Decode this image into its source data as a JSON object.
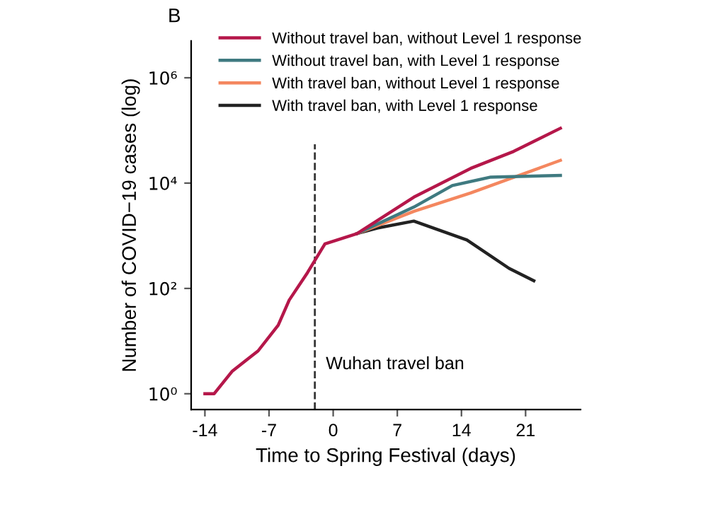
{
  "chart_data": {
    "type": "line",
    "xlabel": "Time to Spring Festival (days)",
    "ylabel": "Number of COVID−19 cases (log)",
    "annotations": [
      "B"
    ],
    "log": "y",
    "xlim": [
      -15.5,
      27
    ],
    "xticks": [
      -14,
      -7,
      0,
      7,
      14,
      21
    ],
    "ylim": [
      0.5,
      5000000
    ],
    "yticks": [
      {
        "value": 1,
        "label": "10⁰"
      },
      {
        "value": 100,
        "label": "10²"
      },
      {
        "value": 10000,
        "label": "10⁴"
      },
      {
        "value": 1000000,
        "label": "10⁶"
      }
    ],
    "grid": false,
    "legend": "top left",
    "line_style": "solid",
    "marker": "none",
    "ref_lines": [
      {
        "axis": "x",
        "value": -2,
        "label": "Wuhan travel ban",
        "color": "#333333",
        "line_style": "dashed"
      }
    ],
    "series": [
      {
        "name": "Without travel ban, without Level 1 response",
        "color": "#b5174a",
        "x": [
          -14,
          -13,
          -11,
          -8.2,
          -6,
          -4.8,
          -2.8,
          -0.9,
          2.6,
          8.8,
          15,
          19.7,
          24.8
        ],
        "values": [
          1,
          1,
          2.7,
          6.5,
          20,
          60,
          200,
          700,
          1100,
          5400,
          19000,
          40000,
          110000
        ]
      },
      {
        "name": "Without travel ban, with Level 1 response",
        "color": "#3f7a80",
        "x": [
          2.6,
          8.8,
          13,
          17.2,
          24.8
        ],
        "values": [
          1100,
          3500,
          9000,
          13000,
          14000
        ]
      },
      {
        "name": "With travel ban, without Level 1 response",
        "color": "#f4875f",
        "x": [
          2.6,
          8.8,
          15,
          24.8
        ],
        "values": [
          1100,
          2900,
          6500,
          27000
        ]
      },
      {
        "name": "With travel ban, with Level 1 response",
        "color": "#222222",
        "x": [
          2.6,
          4.8,
          8.8,
          14.6,
          19.2,
          21.9
        ],
        "values": [
          1100,
          1400,
          1900,
          830,
          240,
          140
        ]
      }
    ]
  }
}
